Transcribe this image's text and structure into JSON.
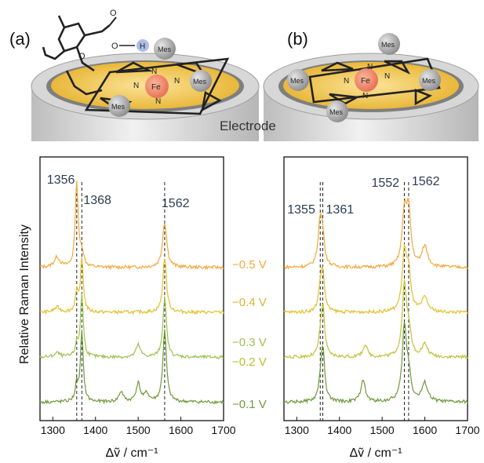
{
  "panels": {
    "a": "(a)",
    "b": "(b)"
  },
  "electrode_label": "Electrode",
  "molecule": {
    "metal": "Fe",
    "nitrogen": "N",
    "substituent": "Mes",
    "hydrogen": "H",
    "oxygen": "O"
  },
  "ylabel": "Relative Raman Intensity",
  "xlabel": "Δṽ / cm⁻¹",
  "potentials": [
    "−0.5 V",
    "−0.4 V",
    "−0.3 V",
    "−0.2 V",
    "−0.1 V"
  ],
  "colors": {
    "-0.5": "#f2a93b",
    "-0.4": "#e3c02e",
    "-0.3": "#9cc24f",
    "-0.2": "#bcc43a",
    "-0.1": "#6f9a3c",
    "electrode_gold": "#f4cd58",
    "electrode_gray": "#c9c9c9",
    "label_text": "#2b3d52"
  },
  "chart_data": [
    {
      "type": "line",
      "panel": "a",
      "xlim": [
        1270,
        1700
      ],
      "xticks": [
        1300,
        1400,
        1500,
        1600,
        1700
      ],
      "xlabel": "Δṽ / cm⁻¹",
      "ylabel": "Relative Raman Intensity",
      "grid": false,
      "peak_labels": [
        {
          "text": "1356",
          "x": 1356
        },
        {
          "text": "1368",
          "x": 1368
        },
        {
          "text": "1562",
          "x": 1562
        }
      ],
      "dashed_lines": [
        1356,
        1368,
        1562
      ],
      "series": [
        {
          "name": "−0.5 V",
          "offset": 3.6,
          "peaks": [
            [
              1356,
              2.1,
              4
            ],
            [
              1368,
              0.35,
              5
            ],
            [
              1562,
              1.1,
              6
            ],
            [
              1310,
              0.25,
              8
            ]
          ]
        },
        {
          "name": "−0.4 V",
          "offset": 2.5,
          "peaks": [
            [
              1356,
              0.45,
              4
            ],
            [
              1368,
              1.3,
              4
            ],
            [
              1562,
              1.35,
              5
            ],
            [
              1310,
              0.12,
              8
            ]
          ]
        },
        {
          "name": "−0.3 V",
          "offset": 1.4,
          "peaks": [
            [
              1368,
              1.55,
              4
            ],
            [
              1356,
              0.3,
              4
            ],
            [
              1562,
              1.45,
              5
            ],
            [
              1500,
              0.3,
              6
            ],
            [
              1310,
              0.1,
              8
            ]
          ]
        },
        {
          "name": "−0.1 V",
          "offset": 0.3,
          "peaks": [
            [
              1368,
              1.7,
              4
            ],
            [
              1356,
              0.4,
              4
            ],
            [
              1562,
              1.75,
              5
            ],
            [
              1460,
              0.25,
              6
            ],
            [
              1500,
              0.45,
              6
            ],
            [
              1520,
              0.2,
              6
            ]
          ]
        }
      ]
    },
    {
      "type": "line",
      "panel": "b",
      "xlim": [
        1270,
        1700
      ],
      "xticks": [
        1300,
        1400,
        1500,
        1600,
        1700
      ],
      "xlabel": "Δṽ / cm⁻¹",
      "grid": false,
      "peak_labels": [
        {
          "text": "1355",
          "x": 1355
        },
        {
          "text": "1361",
          "x": 1361
        },
        {
          "text": "1552",
          "x": 1552
        },
        {
          "text": "1562",
          "x": 1562
        }
      ],
      "dashed_lines": [
        1355,
        1361,
        1552,
        1562
      ],
      "series": [
        {
          "name": "−0.5 V",
          "offset": 3.6,
          "peaks": [
            [
              1355,
              1.1,
              6
            ],
            [
              1361,
              0.5,
              5
            ],
            [
              1552,
              1.3,
              6
            ],
            [
              1562,
              1.3,
              6
            ],
            [
              1600,
              0.5,
              8
            ]
          ]
        },
        {
          "name": "−0.4 V",
          "offset": 2.5,
          "peaks": [
            [
              1355,
              0.5,
              5
            ],
            [
              1361,
              0.9,
              5
            ],
            [
              1552,
              1.4,
              6
            ],
            [
              1562,
              0.9,
              6
            ],
            [
              1600,
              0.35,
              8
            ]
          ]
        },
        {
          "name": "−0.2 V",
          "offset": 1.4,
          "peaks": [
            [
              1361,
              1.2,
              5
            ],
            [
              1355,
              0.3,
              5
            ],
            [
              1552,
              1.7,
              6
            ],
            [
              1562,
              0.6,
              6
            ],
            [
              1460,
              0.3,
              6
            ],
            [
              1600,
              0.3,
              8
            ]
          ]
        },
        {
          "name": "−0.1 V",
          "offset": 0.3,
          "peaks": [
            [
              1361,
              1.3,
              5
            ],
            [
              1355,
              0.3,
              5
            ],
            [
              1552,
              1.8,
              6
            ],
            [
              1562,
              0.6,
              6
            ],
            [
              1455,
              0.55,
              6
            ],
            [
              1600,
              0.45,
              8
            ]
          ]
        }
      ]
    }
  ]
}
